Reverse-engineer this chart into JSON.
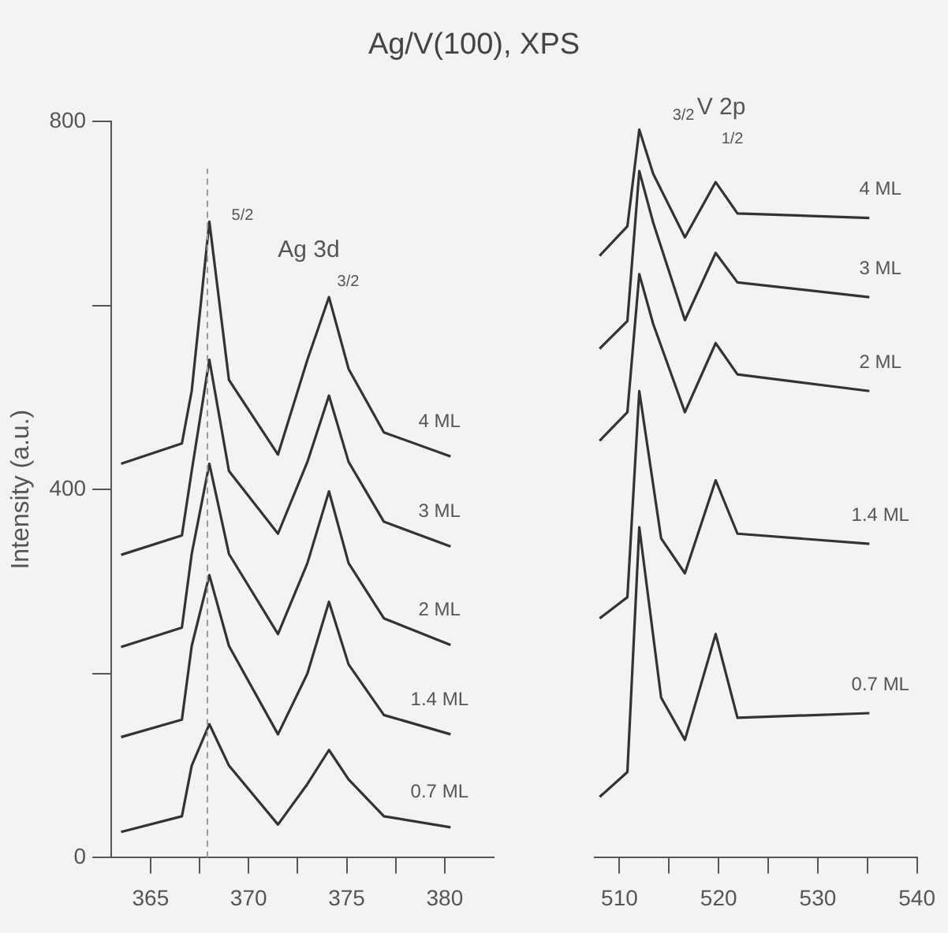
{
  "chart_data": [
    {
      "type": "line",
      "title": "Ag/V(100),  XPS",
      "ylabel": "Intensity (a.u.)",
      "xlim": [
        363,
        382.5
      ],
      "ylim": [
        0,
        800
      ],
      "xticks": [
        365,
        {
          "value": 367.5,
          "label": null
        },
        370,
        {
          "value": 372.5,
          "label": null
        },
        375,
        {
          "value": 377.5,
          "label": null
        },
        380
      ],
      "yticks": [
        0,
        {
          "value": 200,
          "label": null
        },
        400,
        {
          "value": 600,
          "label": null
        },
        800
      ],
      "series": [
        {
          "name": "4 ML",
          "color": "#333333",
          "x": [
            363.5,
            366.6,
            367.1,
            368,
            369,
            371.5,
            373,
            374.1,
            375.1,
            376.9,
            380.3
          ],
          "values": [
            428,
            450,
            507,
            691,
            519,
            438,
            541,
            609,
            531,
            462,
            436
          ]
        },
        {
          "name": "3 ML",
          "color": "#333333",
          "x": [
            363.5,
            366.6,
            367.1,
            368,
            369,
            371.5,
            373,
            374.1,
            375.1,
            376.9,
            380.3
          ],
          "values": [
            329,
            350,
            420,
            541,
            420,
            352,
            430,
            502,
            430,
            365,
            338
          ]
        },
        {
          "name": "2 ML",
          "color": "#333333",
          "x": [
            363.5,
            366.6,
            367.1,
            368,
            369,
            371.5,
            373,
            374.1,
            375.1,
            376.9,
            380.3
          ],
          "values": [
            229,
            250,
            330,
            428,
            330,
            243,
            320,
            398,
            320,
            260,
            231
          ]
        },
        {
          "name": "1.4 ML",
          "color": "#333333",
          "x": [
            363.5,
            366.6,
            367.1,
            368,
            369,
            371.5,
            373,
            374.1,
            375.1,
            376.9,
            380.3
          ],
          "values": [
            131,
            150,
            230,
            307,
            230,
            134,
            200,
            278,
            210,
            155,
            134
          ]
        },
        {
          "name": "0.7 ML",
          "color": "#333333",
          "x": [
            363.5,
            366.6,
            367.1,
            368,
            369,
            371.5,
            373,
            374.1,
            375.1,
            376.9,
            380.3
          ],
          "values": [
            28,
            45,
            100,
            145,
            100,
            36,
            80,
            117,
            85,
            45,
            33
          ]
        }
      ],
      "ref_lines": [
        {
          "axis": "x",
          "value": 367.9,
          "color": "#999999",
          "line_style": "dashed"
        }
      ],
      "annotations": [
        "5/2",
        "Ag 3d",
        "3/2"
      ]
    },
    {
      "type": "line",
      "xlim": [
        507.5,
        540
      ],
      "ylim": [
        0,
        800
      ],
      "tick_labels": "x",
      "xticks": [
        510,
        {
          "value": 515,
          "label": null
        },
        520,
        {
          "value": 525,
          "label": null
        },
        530,
        {
          "value": 535,
          "label": null
        },
        540
      ],
      "series": [
        {
          "name": "4 ML",
          "color": "#333333",
          "x": [
            508,
            510.8,
            512,
            513.4,
            516.6,
            519.7,
            521.9,
            535.2
          ],
          "values": [
            654,
            686,
            791,
            743,
            674,
            734,
            700,
            695
          ]
        },
        {
          "name": "3 ML",
          "color": "#333333",
          "x": [
            508,
            510.8,
            512,
            513.4,
            516.6,
            519.7,
            521.9,
            535.2
          ],
          "values": [
            553,
            583,
            746,
            690,
            584,
            657,
            625,
            609
          ]
        },
        {
          "name": "2 ML",
          "color": "#333333",
          "x": [
            508,
            510.8,
            512,
            513.4,
            516.6,
            519.7,
            521.9,
            535.2
          ],
          "values": [
            453,
            484,
            634,
            580,
            484,
            559,
            525,
            507
          ]
        },
        {
          "name": "1.4 ML",
          "color": "#333333",
          "x": [
            508,
            510.8,
            512,
            514.2,
            516.6,
            519.7,
            521.9,
            535.2
          ],
          "values": [
            260,
            283,
            507,
            347,
            309,
            410,
            352,
            341
          ]
        },
        {
          "name": "0.7 ML",
          "color": "#333333",
          "x": [
            508,
            510.8,
            512,
            514.2,
            516.6,
            519.7,
            521.9,
            535.2
          ],
          "values": [
            66,
            93,
            359,
            174,
            128,
            243,
            152,
            157
          ]
        }
      ],
      "annotations": [
        "3/2",
        "V 2p",
        "1/2"
      ]
    }
  ]
}
